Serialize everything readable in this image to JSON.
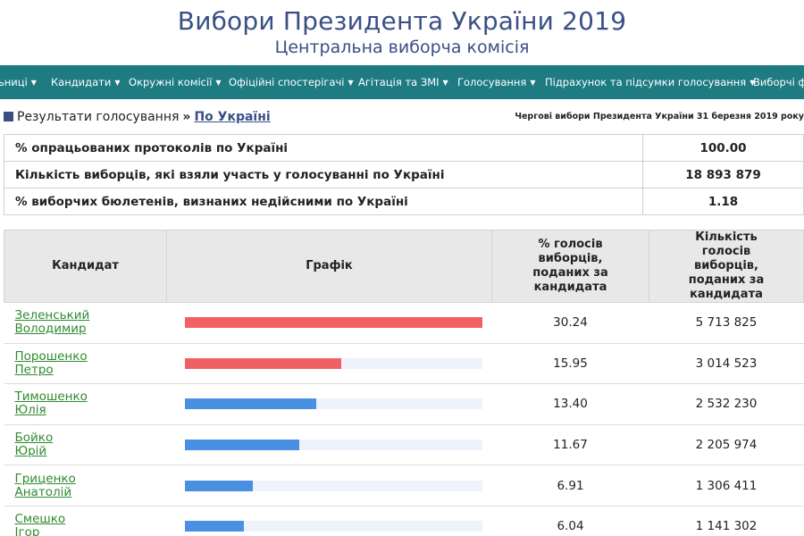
{
  "header": {
    "title": "Вибори Президента України 2019",
    "subtitle": "Центральна виборча комісія"
  },
  "nav": {
    "items": [
      {
        "label": "ьниці"
      },
      {
        "label": "Кандидати"
      },
      {
        "label": "Окружні комісії"
      },
      {
        "label": "Офіційні спостерігачі"
      },
      {
        "label": "Агітація та ЗМІ"
      },
      {
        "label": "Голосування"
      },
      {
        "label": "Підрахунок та підсумки голосування"
      },
      {
        "label": "Виборчі ф"
      }
    ]
  },
  "breadcrumb": {
    "section": "Результати голосування",
    "separator": "»",
    "current": "По Україні"
  },
  "election_note": "Чергові вибори Президента України 31 березня 2019 року",
  "summary": [
    {
      "label": "% опрацьованих протоколів по Україні",
      "value": "100.00"
    },
    {
      "label": "Кількість виборців, які взяли участь у голосуванні по Україні",
      "value": "18 893 879"
    },
    {
      "label": "% виборчих бюлетенів, визнаних недійсними по Україні",
      "value": "1.18"
    }
  ],
  "results": {
    "headers": {
      "candidate": "Кандидат",
      "chart": "Графік",
      "percent": "% голосів виборців, поданих за кандидата",
      "votes": "Кількість голосів виборців, поданих за кандидата"
    },
    "colors": {
      "top": "#f36064",
      "other": "#4a90e2",
      "track": "#edf2fb"
    },
    "rows": [
      {
        "surname": "Зеленський",
        "name": "Володимир",
        "percent": "30.24",
        "votes": "5 713 825",
        "pct_value": 30.24,
        "highlight": true
      },
      {
        "surname": "Порошенко",
        "name": "Петро",
        "percent": "15.95",
        "votes": "3 014 523",
        "pct_value": 15.95,
        "highlight": true
      },
      {
        "surname": "Тимошенко",
        "name": "Юлія",
        "percent": "13.40",
        "votes": "2 532 230",
        "pct_value": 13.4,
        "highlight": false
      },
      {
        "surname": "Бойко",
        "name": "Юрій",
        "percent": "11.67",
        "votes": "2 205 974",
        "pct_value": 11.67,
        "highlight": false
      },
      {
        "surname": "Гриценко",
        "name": "Анатолій",
        "percent": "6.91",
        "votes": "1 306 411",
        "pct_value": 6.91,
        "highlight": false
      },
      {
        "surname": "Смешко",
        "name": "Ігор",
        "percent": "6.04",
        "votes": "1 141 302",
        "pct_value": 6.04,
        "highlight": false
      }
    ]
  }
}
